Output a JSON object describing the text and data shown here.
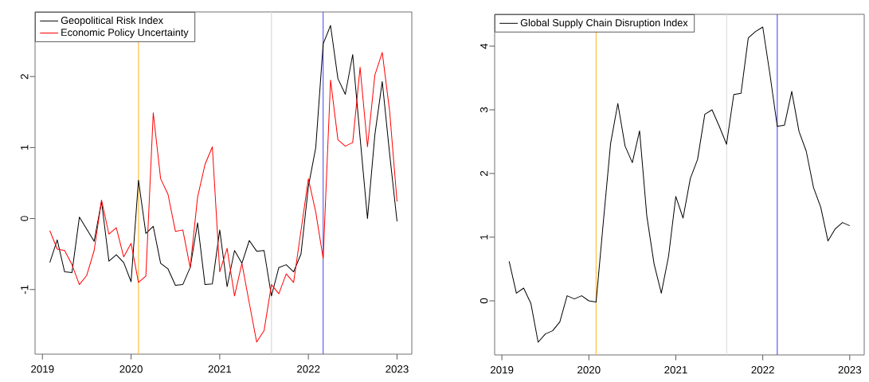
{
  "chart_data": [
    {
      "type": "line",
      "x": [
        "2019-02",
        "2019-03",
        "2019-04",
        "2019-05",
        "2019-06",
        "2019-07",
        "2019-08",
        "2019-09",
        "2019-10",
        "2019-11",
        "2019-12",
        "2020-01",
        "2020-02",
        "2020-03",
        "2020-04",
        "2020-05",
        "2020-06",
        "2020-07",
        "2020-08",
        "2020-09",
        "2020-10",
        "2020-11",
        "2020-12",
        "2021-01",
        "2021-02",
        "2021-03",
        "2021-04",
        "2021-05",
        "2021-06",
        "2021-07",
        "2021-08",
        "2021-09",
        "2021-10",
        "2021-11",
        "2021-12",
        "2022-01",
        "2022-02",
        "2022-03",
        "2022-04",
        "2022-05",
        "2022-06",
        "2022-07",
        "2022-08",
        "2022-09",
        "2022-10",
        "2022-11",
        "2022-12",
        "2023-01"
      ],
      "series": [
        {
          "name": "Geopolitical Risk Index",
          "color": "#000000",
          "values": [
            -0.62,
            -0.3,
            -0.75,
            -0.76,
            0.02,
            -0.15,
            -0.32,
            0.24,
            -0.6,
            -0.51,
            -0.62,
            -0.89,
            0.54,
            -0.21,
            -0.11,
            -0.63,
            -0.71,
            -0.94,
            -0.93,
            -0.69,
            -0.06,
            -0.93,
            -0.92,
            -0.16,
            -0.96,
            -0.45,
            -0.63,
            -0.31,
            -0.46,
            -0.45,
            -1.09,
            -0.69,
            -0.65,
            -0.75,
            -0.5,
            0.45,
            1.0,
            2.46,
            2.72,
            1.97,
            1.75,
            2.31,
            1.14,
            0.0,
            1.18,
            1.93,
            0.91,
            -0.04
          ]
        },
        {
          "name": "Economic Policy Uncertainty",
          "color": "#ff0000",
          "values": [
            -0.17,
            -0.43,
            -0.45,
            -0.65,
            -0.93,
            -0.8,
            -0.45,
            0.26,
            -0.22,
            -0.13,
            -0.54,
            -0.35,
            -0.9,
            -0.81,
            1.49,
            0.56,
            0.34,
            -0.18,
            -0.16,
            -0.69,
            0.3,
            0.76,
            1.01,
            -0.75,
            -0.42,
            -1.09,
            -0.63,
            -1.19,
            -1.74,
            -1.58,
            -0.93,
            -1.06,
            -0.78,
            -0.9,
            -0.17,
            0.56,
            0.09,
            -0.56,
            1.95,
            1.11,
            1.02,
            1.07,
            2.13,
            1.01,
            2.02,
            2.34,
            1.51,
            0.24
          ]
        }
      ],
      "xlim": [
        "2018-12",
        "2023-03"
      ],
      "xticks": [
        "2019",
        "2020",
        "2021",
        "2022",
        "2023"
      ],
      "ylim": [
        -1.91,
        2.91
      ],
      "yticks": [
        -1,
        0,
        1,
        2
      ],
      "ref_lines": [
        {
          "axis": "x",
          "value": "2020-02",
          "color": "#ffbf40"
        },
        {
          "axis": "x",
          "value": "2021-08",
          "color": "#d9d9d9"
        },
        {
          "axis": "x",
          "value": "2022-03",
          "color": "#5a5aee"
        }
      ],
      "legend": "top left"
    },
    {
      "type": "line",
      "x": [
        "2019-02",
        "2019-03",
        "2019-04",
        "2019-05",
        "2019-06",
        "2019-07",
        "2019-08",
        "2019-09",
        "2019-10",
        "2019-11",
        "2019-12",
        "2020-01",
        "2020-02",
        "2020-03",
        "2020-04",
        "2020-05",
        "2020-06",
        "2020-07",
        "2020-08",
        "2020-09",
        "2020-10",
        "2020-11",
        "2020-12",
        "2021-01",
        "2021-02",
        "2021-03",
        "2021-04",
        "2021-05",
        "2021-06",
        "2021-07",
        "2021-08",
        "2021-09",
        "2021-10",
        "2021-11",
        "2021-12",
        "2022-01",
        "2022-02",
        "2022-03",
        "2022-04",
        "2022-05",
        "2022-06",
        "2022-07",
        "2022-08",
        "2022-09",
        "2022-10",
        "2022-11",
        "2022-12",
        "2023-01"
      ],
      "series": [
        {
          "name": "Global Supply Chain Disruption Index",
          "color": "#000000",
          "values": [
            0.62,
            0.12,
            0.2,
            -0.04,
            -0.65,
            -0.52,
            -0.47,
            -0.33,
            0.08,
            0.03,
            0.08,
            0.0,
            -0.02,
            1.24,
            2.47,
            3.1,
            2.43,
            2.17,
            2.67,
            1.33,
            0.58,
            0.12,
            0.7,
            1.64,
            1.3,
            1.92,
            2.22,
            2.93,
            3.0,
            2.74,
            2.46,
            3.24,
            3.26,
            4.13,
            4.23,
            4.3,
            3.55,
            2.74,
            2.76,
            3.29,
            2.66,
            2.35,
            1.78,
            1.47,
            0.94,
            1.13,
            1.23,
            1.18
          ]
        }
      ],
      "xlim": [
        "2018-12",
        "2023-03"
      ],
      "xticks": [
        "2019",
        "2020",
        "2021",
        "2022",
        "2023"
      ],
      "ylim": [
        -0.85,
        4.5
      ],
      "yticks": [
        0,
        1,
        2,
        3,
        4
      ],
      "ref_lines": [
        {
          "axis": "x",
          "value": "2020-02",
          "color": "#ffbf40"
        },
        {
          "axis": "x",
          "value": "2021-08",
          "color": "#d9d9d9"
        },
        {
          "axis": "x",
          "value": "2022-03",
          "color": "#5a5aee"
        }
      ],
      "legend": "top left"
    }
  ]
}
